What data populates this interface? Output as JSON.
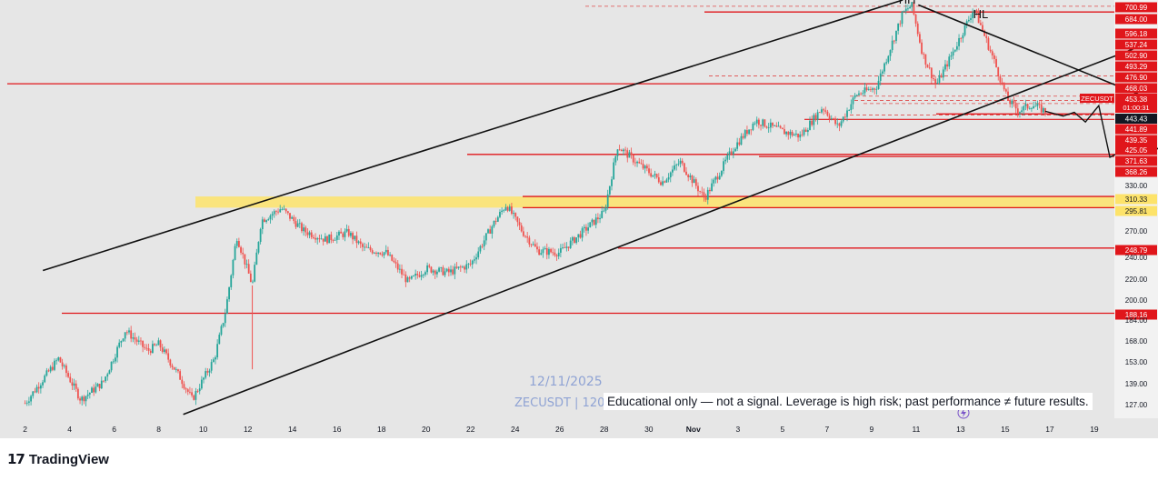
{
  "brand": {
    "logo_mark": "17",
    "logo_text": "TradingView"
  },
  "watermark": {
    "date": "12/11/2025",
    "symbol": "ZECUSDT | 120"
  },
  "disclaimer": "Educational only — not a signal. Leverage is high risk; past performance ≠ future results.",
  "colors": {
    "up": "#26a69a",
    "down": "#ef5350",
    "level": "#e0161b",
    "zone": "#fde36a",
    "background": "#e6e6e6"
  },
  "chart_data": {
    "type": "candlestick",
    "symbol": "ZECUSDT",
    "scale": "log",
    "ylim": [
      120,
      720
    ],
    "x_ticks": [
      "2",
      "4",
      "6",
      "8",
      "10",
      "12",
      "14",
      "16",
      "18",
      "20",
      "22",
      "24",
      "26",
      "28",
      "30",
      "Nov",
      "3",
      "5",
      "7",
      "9",
      "11",
      "13",
      "15",
      "17",
      "19"
    ],
    "y_ticks": [
      "700.99",
      "684.00",
      "596.18",
      "537.24",
      "502.90",
      "493.29",
      "476.90",
      "468.03",
      "453.38",
      "443.43",
      "441.89",
      "439.35",
      "425.05",
      "371.63",
      "368.26",
      "330.00",
      "310.33",
      "295.81",
      "270.00",
      "248.79",
      "240.00",
      "220.00",
      "200.00",
      "188.16",
      "184.00",
      "168.00",
      "153.00",
      "139.00",
      "127.00"
    ],
    "highlighted_levels": [
      "684.00",
      "502.90",
      "441.89",
      "371.63",
      "368.26",
      "310.33",
      "295.81",
      "248.79",
      "188.16"
    ],
    "price_label": {
      "symbol": "ZECUSDT",
      "price": "453.38",
      "countdown": "01:00:31"
    },
    "current_price_box": "443.43",
    "pattern_labels": [
      "HH",
      "HL"
    ],
    "support_zone": [
      "295.81",
      "310.33"
    ],
    "path": [
      [
        0,
        128
      ],
      [
        1.5,
        155
      ],
      [
        2.5,
        130
      ],
      [
        3.5,
        140
      ],
      [
        4.5,
        175
      ],
      [
        5.5,
        160
      ],
      [
        6,
        165
      ],
      [
        7,
        142
      ],
      [
        7.5,
        130
      ],
      [
        8.5,
        155
      ],
      [
        9,
        190
      ],
      [
        9.5,
        262
      ],
      [
        10.2,
        212
      ],
      [
        10.6,
        280
      ],
      [
        11.5,
        295
      ],
      [
        12.5,
        268
      ],
      [
        13.5,
        258
      ],
      [
        14.5,
        266
      ],
      [
        15.2,
        248
      ],
      [
        16.2,
        244
      ],
      [
        17.2,
        215
      ],
      [
        18,
        228
      ],
      [
        19,
        224
      ],
      [
        20,
        232
      ],
      [
        21,
        275
      ],
      [
        21.6,
        300
      ],
      [
        22.3,
        268
      ],
      [
        23,
        246
      ],
      [
        24,
        244
      ],
      [
        25,
        266
      ],
      [
        26,
        290
      ],
      [
        26.6,
        385
      ],
      [
        27.6,
        355
      ],
      [
        28.6,
        330
      ],
      [
        29.4,
        360
      ],
      [
        30.5,
        308
      ],
      [
        31.8,
        382
      ],
      [
        32.8,
        430
      ],
      [
        34,
        410
      ],
      [
        34.8,
        402
      ],
      [
        35.8,
        455
      ],
      [
        36.5,
        418
      ],
      [
        37.3,
        480
      ],
      [
        38.2,
        495
      ],
      [
        39.4,
        680
      ],
      [
        39.8,
        705
      ],
      [
        40.3,
        570
      ],
      [
        40.9,
        500
      ],
      [
        41.6,
        570
      ],
      [
        42.6,
        695
      ],
      [
        43.5,
        555
      ],
      [
        44.1,
        470
      ],
      [
        44.6,
        448
      ],
      [
        45.2,
        460
      ],
      [
        45.8,
        447
      ]
    ],
    "long_red_wick": {
      "x": 10.2,
      "low": 148
    },
    "trendlines": [
      {
        "from": [
          0.8,
          226
        ],
        "to": [
          39.4,
          720
        ]
      },
      {
        "from": [
          7.1,
          122
        ],
        "to": [
          50.5,
          600
        ]
      },
      {
        "from": [
          40.1,
          705
        ],
        "to": [
          50.5,
          471
        ]
      }
    ],
    "projection": [
      [
        45.8,
        447
      ],
      [
        46.6,
        438
      ],
      [
        47.1,
        445
      ],
      [
        47.6,
        427
      ],
      [
        48.2,
        458
      ],
      [
        48.7,
        367
      ],
      [
        49.4,
        380
      ],
      [
        49.8,
        373
      ],
      [
        50.4,
        386
      ],
      [
        50.8,
        380
      ],
      [
        51.3,
        392
      ]
    ],
    "x_range": [
      -0.8,
      48.9
    ]
  }
}
